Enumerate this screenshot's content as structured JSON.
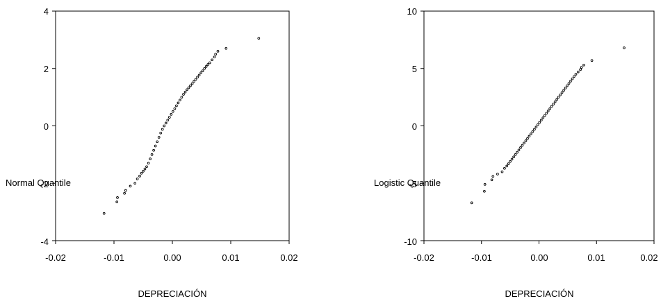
{
  "chart_data": [
    {
      "type": "scatter",
      "xlabel": "DEPRECIACIÓN",
      "ylabel": "Normal Quantile",
      "xlim": [
        -0.02,
        0.02
      ],
      "ylim": [
        -4,
        4
      ],
      "x_ticks": [
        "-0.02",
        "-0.01",
        "0.00",
        "0.01",
        "0.02"
      ],
      "y_ticks": [
        "4",
        "2",
        "0",
        "-2",
        "-4"
      ],
      "grid": false,
      "points_x": [
        -0.0117,
        -0.0095,
        -0.0094,
        -0.0082,
        -0.008,
        -0.0072,
        -0.0064,
        -0.006,
        -0.0056,
        -0.0053,
        -0.005,
        -0.0047,
        -0.0044,
        -0.0041,
        -0.0038,
        -0.0035,
        -0.0032,
        -0.0029,
        -0.0026,
        -0.0023,
        -0.002,
        -0.0017,
        -0.0014,
        -0.0011,
        -0.0008,
        -0.0005,
        -0.0002,
        0.0001,
        0.0004,
        0.0007,
        0.001,
        0.0013,
        0.0016,
        0.0019,
        0.0022,
        0.0025,
        0.0028,
        0.0031,
        0.0034,
        0.0037,
        0.004,
        0.0043,
        0.0046,
        0.0049,
        0.0052,
        0.0055,
        0.0058,
        0.0061,
        0.0064,
        0.0068,
        0.0072,
        0.0074,
        0.0078,
        0.0092,
        0.0148
      ],
      "points_y": [
        -3.05,
        -2.65,
        -2.5,
        -2.35,
        -2.25,
        -2.1,
        -2.0,
        -1.85,
        -1.75,
        -1.65,
        -1.58,
        -1.5,
        -1.42,
        -1.3,
        -1.15,
        -1.0,
        -0.85,
        -0.7,
        -0.55,
        -0.4,
        -0.25,
        -0.12,
        0.0,
        0.1,
        0.2,
        0.3,
        0.4,
        0.5,
        0.6,
        0.7,
        0.8,
        0.9,
        1.0,
        1.1,
        1.18,
        1.26,
        1.33,
        1.4,
        1.47,
        1.55,
        1.62,
        1.7,
        1.77,
        1.85,
        1.92,
        2.0,
        2.07,
        2.14,
        2.2,
        2.3,
        2.4,
        2.5,
        2.6,
        2.7,
        3.05
      ]
    },
    {
      "type": "scatter",
      "xlabel": "DEPRECIACIÓN",
      "ylabel": "Logistic Quantile",
      "xlim": [
        -0.02,
        0.02
      ],
      "ylim": [
        -10,
        10
      ],
      "x_ticks": [
        "-0.02",
        "-0.01",
        "0.00",
        "0.01",
        "0.02"
      ],
      "y_ticks": [
        "10",
        "5",
        "0",
        "-5",
        "-10"
      ],
      "grid": false,
      "points_x": [
        -0.0117,
        -0.0095,
        -0.0094,
        -0.0082,
        -0.008,
        -0.0072,
        -0.0064,
        -0.006,
        -0.0056,
        -0.0053,
        -0.005,
        -0.0047,
        -0.0044,
        -0.0041,
        -0.0038,
        -0.0035,
        -0.0032,
        -0.0029,
        -0.0026,
        -0.0023,
        -0.002,
        -0.0017,
        -0.0014,
        -0.0011,
        -0.0008,
        -0.0005,
        -0.0002,
        0.0001,
        0.0004,
        0.0007,
        0.001,
        0.0013,
        0.0016,
        0.0019,
        0.0022,
        0.0025,
        0.0028,
        0.0031,
        0.0034,
        0.0037,
        0.004,
        0.0043,
        0.0046,
        0.0049,
        0.0052,
        0.0055,
        0.0058,
        0.0061,
        0.0064,
        0.0068,
        0.0072,
        0.0074,
        0.0078,
        0.0092,
        0.0148
      ],
      "points_y": [
        -6.7,
        -5.7,
        -5.1,
        -4.7,
        -4.4,
        -4.2,
        -4.0,
        -3.7,
        -3.5,
        -3.3,
        -3.1,
        -2.9,
        -2.7,
        -2.5,
        -2.3,
        -2.1,
        -1.9,
        -1.7,
        -1.5,
        -1.3,
        -1.1,
        -0.9,
        -0.7,
        -0.5,
        -0.3,
        -0.1,
        0.1,
        0.3,
        0.5,
        0.7,
        0.9,
        1.1,
        1.3,
        1.5,
        1.7,
        1.9,
        2.1,
        2.3,
        2.5,
        2.7,
        2.9,
        3.1,
        3.3,
        3.5,
        3.7,
        3.9,
        4.1,
        4.3,
        4.5,
        4.7,
        4.9,
        5.1,
        5.3,
        5.7,
        6.8
      ]
    }
  ]
}
